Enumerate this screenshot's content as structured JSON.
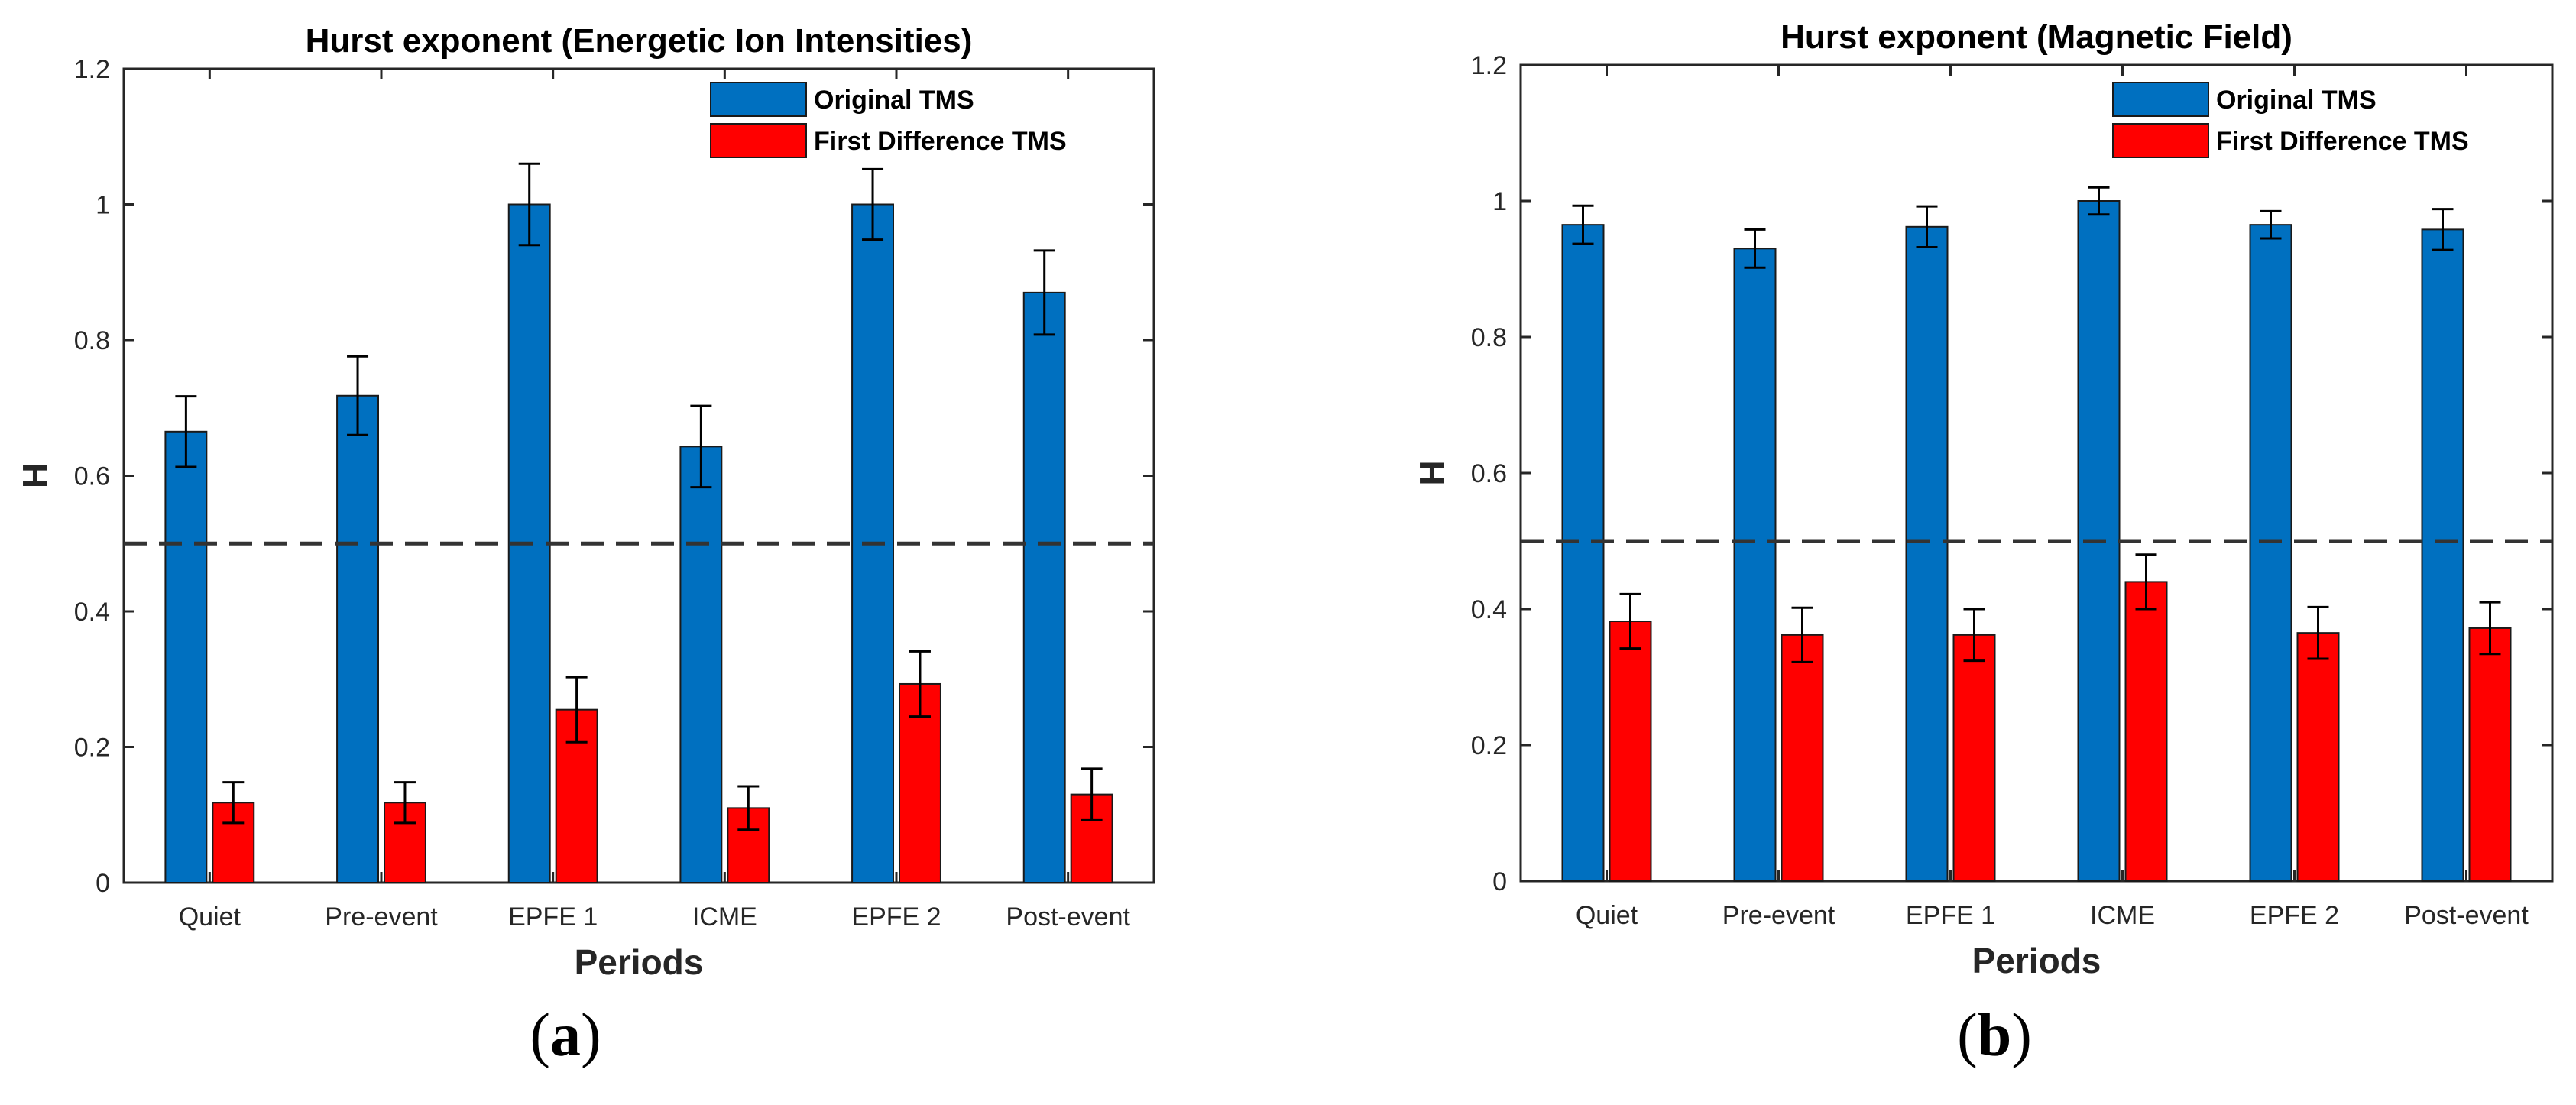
{
  "legend_labels": [
    "Original TMS",
    "First Difference TMS"
  ],
  "colors": {
    "original": "#0070c0",
    "first_difference": "#ff0000",
    "reference_line": "#333333",
    "axis": "#262626"
  },
  "chart_data": [
    {
      "type": "bar",
      "panel_label": "a",
      "caption_open": "(",
      "caption_close": ")",
      "title": "Hurst exponent (Energetic Ion Intensities)",
      "xlabel": "Periods",
      "ylabel": "H",
      "categories": [
        "Quiet",
        "Pre-event",
        "EPFE 1",
        "ICME",
        "EPFE 2",
        "Post-event"
      ],
      "ylim": [
        0,
        1.2
      ],
      "yticks": [
        0,
        0.2,
        0.4,
        0.6,
        0.8,
        1,
        1.2
      ],
      "ytick_labels": [
        "0",
        "0.2",
        "0.4",
        "0.6",
        "0.8",
        "1",
        "1.2"
      ],
      "reference_line": 0.5,
      "legend_position": "top-right",
      "series": [
        {
          "name": "Original TMS",
          "values": [
            0.665,
            0.718,
            1.0,
            0.643,
            1.0,
            0.87
          ],
          "errors": [
            0.052,
            0.058,
            0.06,
            0.06,
            0.052,
            0.062
          ]
        },
        {
          "name": "First Difference TMS",
          "values": [
            0.118,
            0.118,
            0.255,
            0.11,
            0.293,
            0.13
          ],
          "errors": [
            0.03,
            0.03,
            0.048,
            0.032,
            0.048,
            0.038
          ]
        }
      ]
    },
    {
      "type": "bar",
      "panel_label": "b",
      "caption_open": "(",
      "caption_close": ")",
      "title": "Hurst exponent (Magnetic Field)",
      "xlabel": "Periods",
      "ylabel": "H",
      "categories": [
        "Quiet",
        "Pre-event",
        "EPFE 1",
        "ICME",
        "EPFE 2",
        "Post-event"
      ],
      "ylim": [
        0,
        1.2
      ],
      "yticks": [
        0,
        0.2,
        0.4,
        0.6,
        0.8,
        1,
        1.2
      ],
      "ytick_labels": [
        "0",
        "0.2",
        "0.4",
        "0.6",
        "0.8",
        "1",
        "1.2"
      ],
      "reference_line": 0.5,
      "legend_position": "top-right",
      "series": [
        {
          "name": "Original TMS",
          "values": [
            0.965,
            0.93,
            0.962,
            1.0,
            0.965,
            0.958
          ],
          "errors": [
            0.028,
            0.028,
            0.03,
            0.02,
            0.02,
            0.03
          ]
        },
        {
          "name": "First Difference TMS",
          "values": [
            0.382,
            0.362,
            0.362,
            0.44,
            0.365,
            0.372
          ],
          "errors": [
            0.04,
            0.04,
            0.038,
            0.04,
            0.038,
            0.038
          ]
        }
      ]
    }
  ]
}
